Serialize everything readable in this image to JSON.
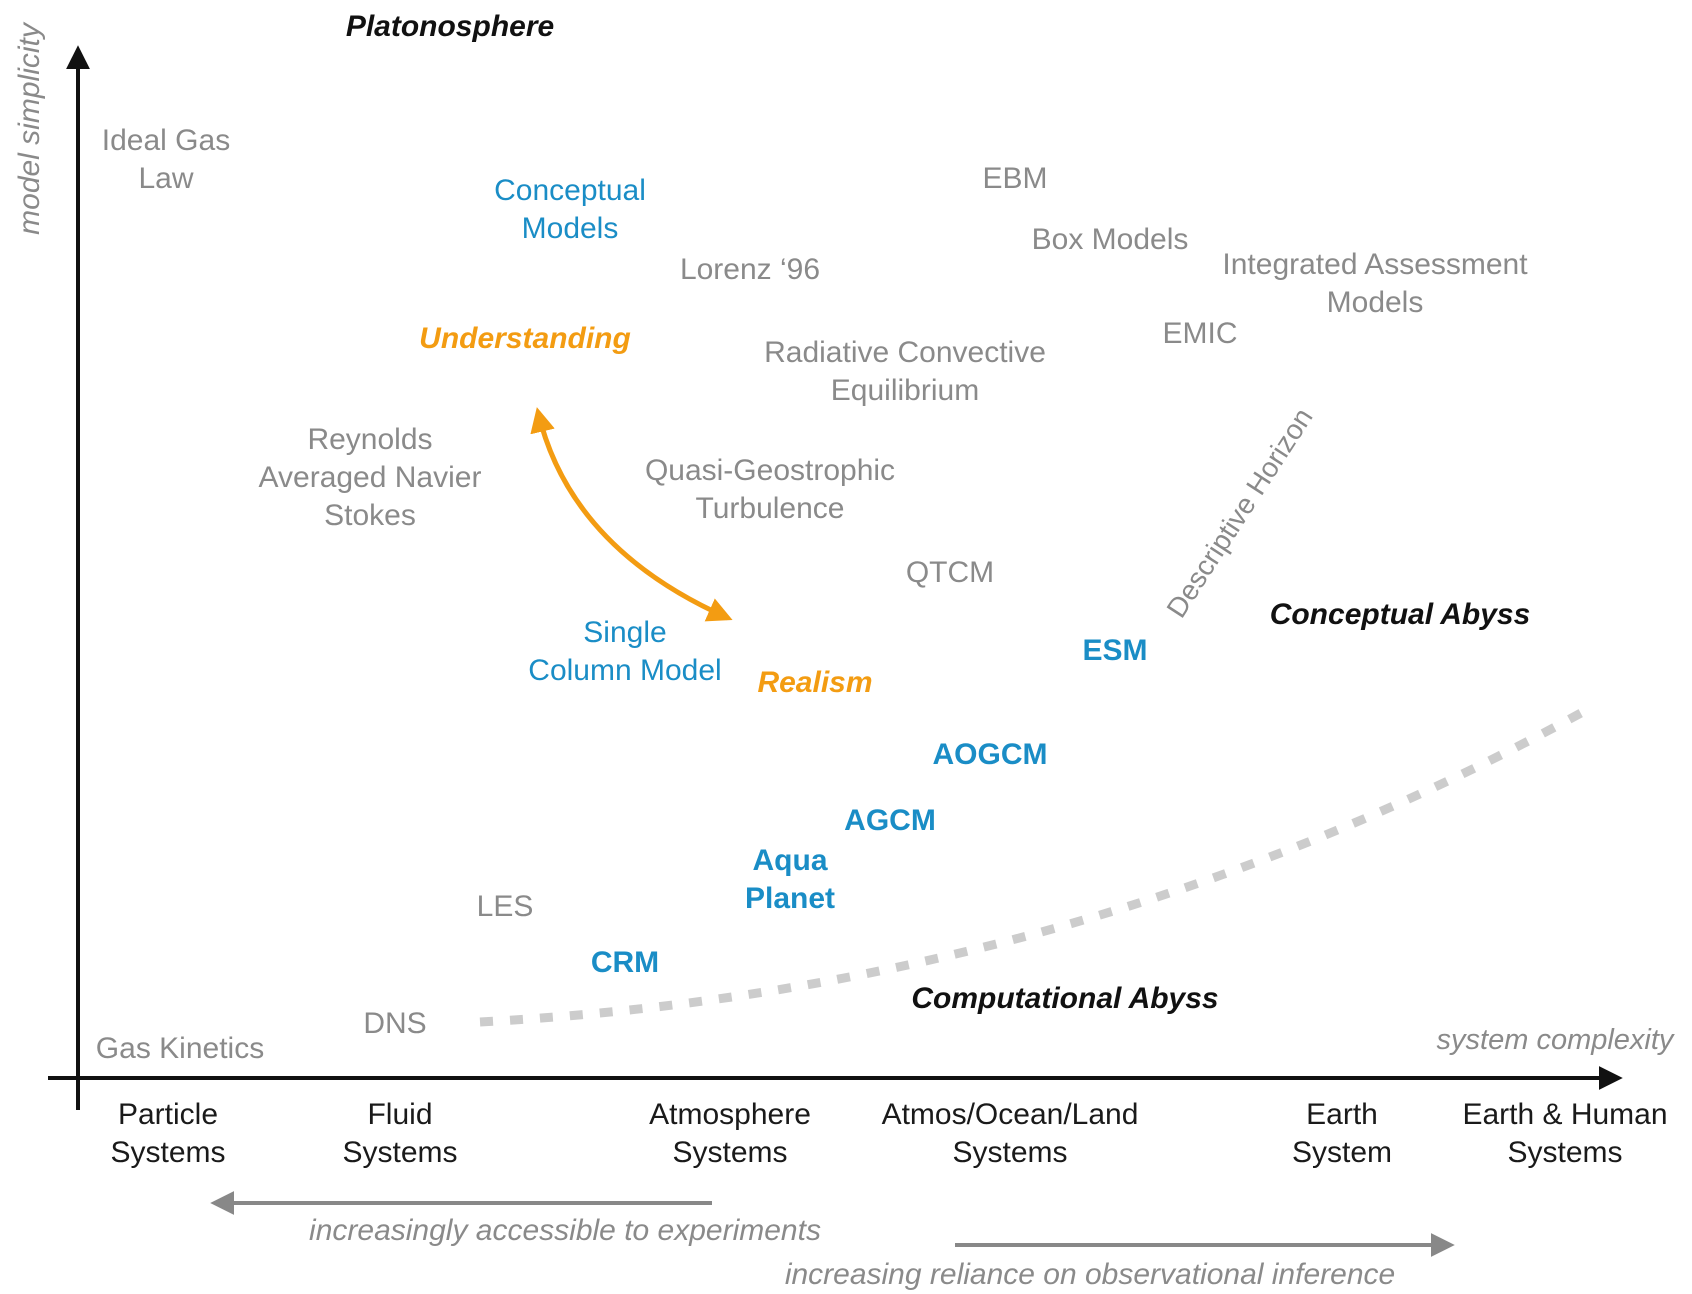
{
  "colors": {
    "axis": "#111111",
    "gray_text": "#8a8a8a",
    "blue_text": "#1a8dc6",
    "orange_accent": "#f39c12",
    "abyss_dash": "#cccccc",
    "note_arrow": "#888888"
  },
  "axes": {
    "y_label": "model simplicity",
    "x_label": "system complexity",
    "x_categories": [
      [
        "Particle",
        "Systems"
      ],
      [
        "Fluid",
        "Systems"
      ],
      [
        "Atmosphere",
        "Systems"
      ],
      [
        "Atmos/Ocean/Land",
        "Systems"
      ],
      [
        "Earth",
        "System"
      ],
      [
        "Earth & Human",
        "Systems"
      ]
    ]
  },
  "regions": {
    "platonosphere": "Platonosphere",
    "conceptual_abyss": "Conceptual Abyss",
    "computational_abyss": "Computational Abyss",
    "descriptive_horizon": "Descriptive Horizon"
  },
  "tradeoff": {
    "top": "Understanding",
    "bottom": "Realism"
  },
  "models": {
    "ideal_gas": [
      "Ideal Gas",
      "Law"
    ],
    "conceptual": [
      "Conceptual",
      "Models"
    ],
    "lorenz": "Lorenz ‘96",
    "ebm": "EBM",
    "box": "Box Models",
    "iam": [
      "Integrated Assessment",
      "Models"
    ],
    "emic": "EMIC",
    "rce": [
      "Radiative Convective",
      "Equilibrium"
    ],
    "rans": [
      "Reynolds",
      "Averaged Navier",
      "Stokes"
    ],
    "qg": [
      "Quasi-Geostrophic",
      "Turbulence"
    ],
    "qtcm": "QTCM",
    "scm": [
      "Single",
      "Column Model"
    ],
    "esm": "ESM",
    "aogcm": "AOGCM",
    "agcm": "AGCM",
    "aqua": [
      "Aqua",
      "Planet"
    ],
    "les": "LES",
    "crm": "CRM",
    "dns": "DNS",
    "gas_kinetics": "Gas Kinetics"
  },
  "notes": {
    "experiments": "increasingly accessible to experiments",
    "observation": "increasing reliance on observational inference"
  }
}
